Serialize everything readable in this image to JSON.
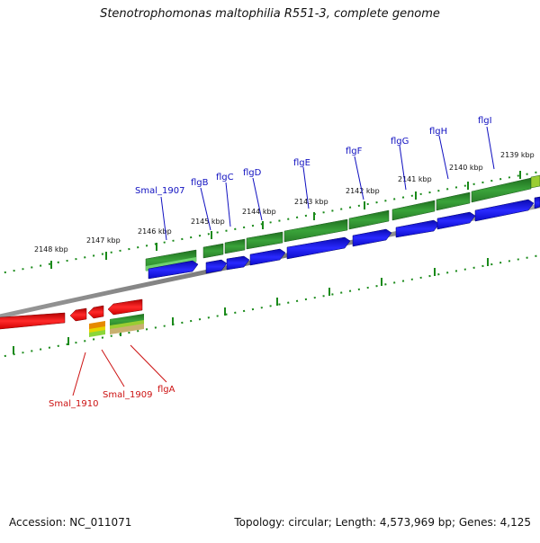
{
  "title": "Stenotrophomonas maltophilia R551-3, complete genome",
  "footer": {
    "accession": "Accession: NC_011071",
    "summary": "Topology: circular; Length: 4,573,969 bp; Genes: 4,125"
  },
  "colors": {
    "forward_gene": "#2e8b2e",
    "forward_cds": "#1010e0",
    "reverse_gene": "#dd1111",
    "backbone": "#888888",
    "tick": "#1a8a1a",
    "label_forward": "#1010c0",
    "label_reverse": "#cc1111"
  },
  "kbp_labels": [
    "2148 kbp",
    "2147 kbp",
    "2146 kbp",
    "2145 kbp",
    "2144 kbp",
    "2143 kbp",
    "2142 kbp",
    "2141 kbp",
    "2140 kbp",
    "2139 kbp"
  ],
  "forward_gene_labels": [
    "Smal_1907",
    "flgB",
    "flgC",
    "flgD",
    "flgE",
    "flgF",
    "flgG",
    "flgH",
    "flgI"
  ],
  "reverse_gene_labels": [
    "Smal_1910",
    "Smal_1909",
    "flgA"
  ]
}
